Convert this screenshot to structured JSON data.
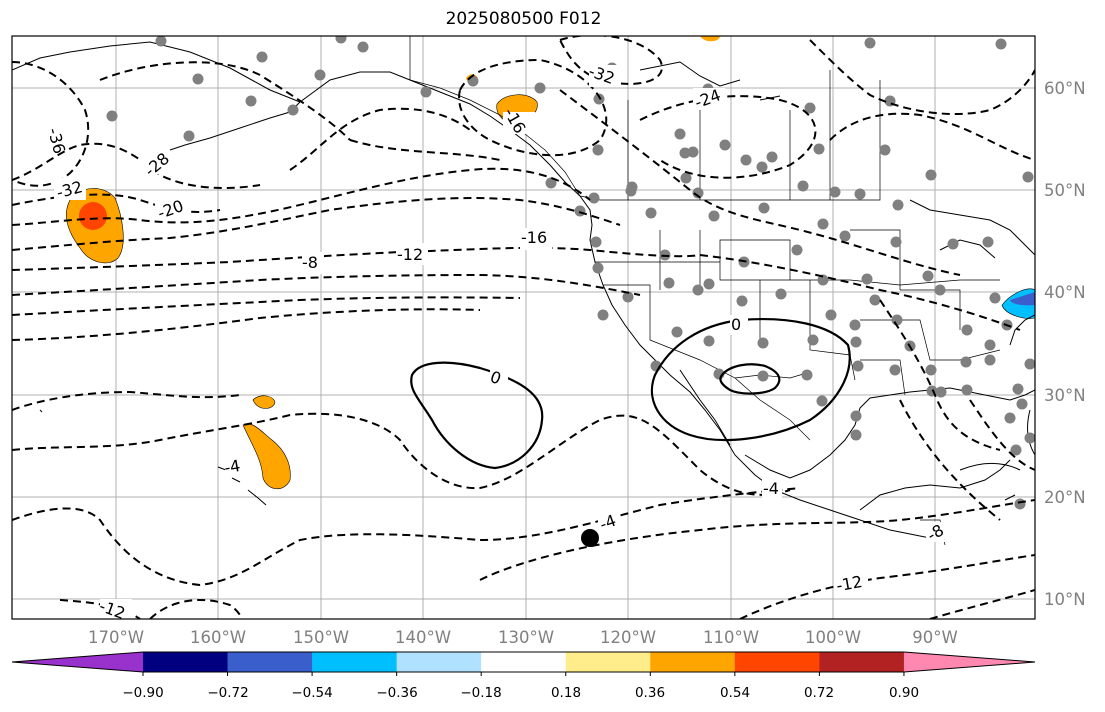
{
  "title": "2025080500 F012",
  "longitude_labels": [
    "170°W",
    "160°W",
    "150°W",
    "140°W",
    "130°W",
    "120°W",
    "110°W",
    "100°W",
    "90°W"
  ],
  "latitude_labels": [
    "60°N",
    "50°N",
    "40°N",
    "30°N",
    "20°N",
    "10°N"
  ],
  "colorbar": {
    "ticks": [
      "−0.90",
      "−0.72",
      "−0.54",
      "−0.36",
      "−0.18",
      "0.18",
      "0.36",
      "0.54",
      "0.72",
      "0.90"
    ],
    "colors": [
      "#9932cc",
      "#000080",
      "#3a5fcd",
      "#00bfff",
      "#b0e2ff",
      "#ffffff",
      "#ffec8b",
      "#ffa500",
      "#ff4500",
      "#b22222",
      "#ff88b0"
    ]
  },
  "contour_labels": [
    {
      "text": "-36"
    },
    {
      "text": "-32"
    },
    {
      "text": "-28"
    },
    {
      "text": "-20"
    },
    {
      "text": "-8"
    },
    {
      "text": "-12"
    },
    {
      "text": "-16"
    },
    {
      "text": "-24"
    },
    {
      "text": "-32"
    },
    {
      "text": "-16"
    },
    {
      "text": "0"
    },
    {
      "text": "0"
    },
    {
      "text": "-4"
    },
    {
      "text": "-4"
    },
    {
      "text": "-4"
    },
    {
      "text": "-8"
    },
    {
      "text": "-12"
    },
    {
      "text": "-12"
    }
  ],
  "colors": {
    "high_anomaly": "#ffa500",
    "strong_anomaly": "#ff4500",
    "low_anomaly": "#00bfff",
    "station": "#808080",
    "contour": "#000000"
  }
}
